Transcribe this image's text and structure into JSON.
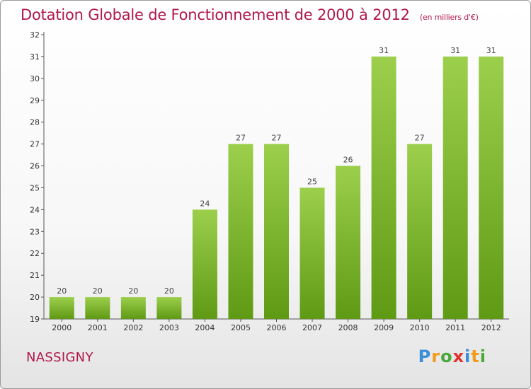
{
  "header": {
    "title": "Dotation Globale de Fonctionnement de 2000 à 2012",
    "unit": "(en milliers d'€)"
  },
  "footer": {
    "commune": "NASSIGNY",
    "logo_text": "Proxiti"
  },
  "colors": {
    "title": "#b0174c",
    "bar_top": "#9ccf4c",
    "bar_bottom": "#5f9a14",
    "axis": "#555555"
  },
  "chart_data": {
    "type": "bar",
    "title": "Dotation Globale de Fonctionnement de 2000 à 2012",
    "xlabel": "",
    "ylabel": "",
    "categories": [
      "2000",
      "2001",
      "2002",
      "2003",
      "2004",
      "2005",
      "2006",
      "2007",
      "2008",
      "2009",
      "2010",
      "2011",
      "2012"
    ],
    "values": [
      20,
      20,
      20,
      20,
      24,
      27,
      27,
      25,
      26,
      31,
      27,
      31,
      31
    ],
    "ylim": [
      19,
      32
    ],
    "yticks": [
      19,
      20,
      21,
      22,
      23,
      24,
      25,
      26,
      27,
      28,
      29,
      30,
      31,
      32
    ],
    "grid": false,
    "legend": "none"
  }
}
